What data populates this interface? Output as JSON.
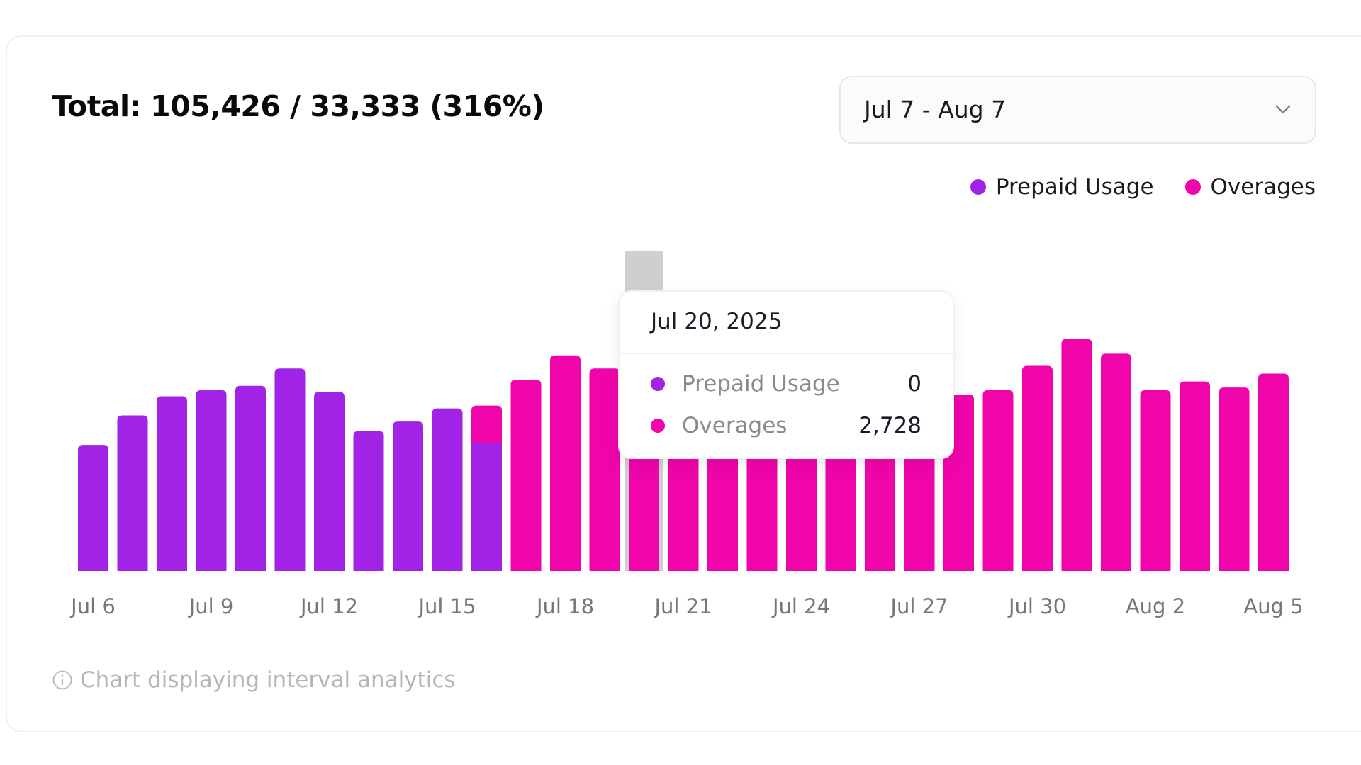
{
  "header": {
    "title": "Total: 105,426 / 33,333 (316%)"
  },
  "date_range": {
    "selected": "Jul 7 - Aug 7",
    "icon": "chevron-down-icon"
  },
  "legend": [
    {
      "label": "Prepaid Usage",
      "color": "#a023e6"
    },
    {
      "label": "Overages",
      "color": "#f005ab"
    }
  ],
  "tooltip": {
    "date": "Jul 20, 2025",
    "rows": [
      {
        "label": "Prepaid Usage",
        "value": "0",
        "color": "#a023e6"
      },
      {
        "label": "Overages",
        "value": "2,728",
        "color": "#f005ab"
      }
    ]
  },
  "footer": {
    "note": "Chart displaying interval analytics",
    "icon": "info-icon"
  },
  "chart_data": {
    "type": "bar",
    "stacked": true,
    "ylim": [
      0,
      6700
    ],
    "grid": false,
    "legend_position": "top-right",
    "categories": [
      "Jul 6",
      "Jul 7",
      "Jul 8",
      "Jul 9",
      "Jul 10",
      "Jul 11",
      "Jul 12",
      "Jul 13",
      "Jul 14",
      "Jul 15",
      "Jul 16",
      "Jul 17",
      "Jul 18",
      "Jul 19",
      "Jul 20",
      "Jul 21",
      "Jul 22",
      "Jul 23",
      "Jul 24",
      "Jul 25",
      "Jul 26",
      "Jul 27",
      "Jul 28",
      "Jul 29",
      "Jul 30",
      "Jul 31",
      "Aug 1",
      "Aug 2",
      "Aug 3",
      "Aug 4",
      "Aug 5"
    ],
    "tick_labels": [
      "Jul 6",
      "Jul 9",
      "Jul 12",
      "Jul 15",
      "Jul 18",
      "Jul 21",
      "Jul 24",
      "Jul 27",
      "Jul 30",
      "Aug 2",
      "Aug 5"
    ],
    "highlighted": "Jul 20",
    "series": [
      {
        "name": "Prepaid Usage",
        "color": "#a023e6",
        "values": [
          2355,
          2907,
          3264,
          3378,
          3459,
          3784,
          3345,
          2615,
          2793,
          3037,
          2390,
          0,
          0,
          0,
          0,
          0,
          0,
          0,
          0,
          0,
          0,
          0,
          0,
          0,
          0,
          0,
          0,
          0,
          0,
          0,
          0
        ]
      },
      {
        "name": "Overages",
        "color": "#f005ab",
        "values": [
          0,
          0,
          0,
          0,
          0,
          0,
          0,
          0,
          0,
          0,
          700,
          3573,
          4028,
          3784,
          2728,
          3400,
          3450,
          3500,
          3450,
          3500,
          3550,
          3500,
          3297,
          3378,
          3833,
          4336,
          4060,
          3378,
          3540,
          3427,
          3687
        ]
      }
    ]
  }
}
